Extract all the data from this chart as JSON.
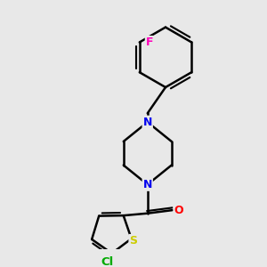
{
  "background_color": "#e8e8e8",
  "bond_color": "#000000",
  "bond_width": 1.8,
  "atom_colors": {
    "N": "#0000ee",
    "O": "#ff0000",
    "S": "#cccc00",
    "Cl": "#00aa00",
    "F": "#ff00bb",
    "C": "#000000"
  },
  "font_size": 9,
  "fig_width": 3.0,
  "fig_height": 3.0,
  "dpi": 100
}
